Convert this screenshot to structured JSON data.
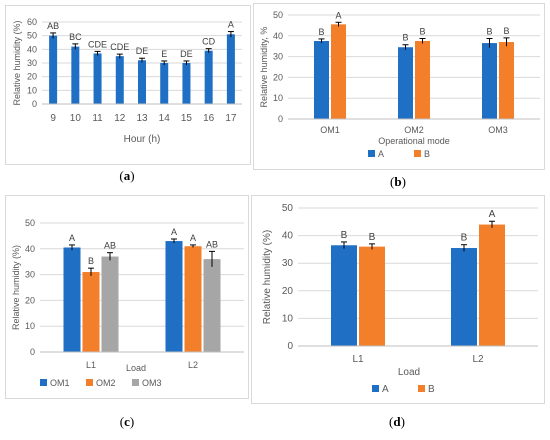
{
  "captions": [
    {
      "prefix": "(",
      "letter": "a",
      "suffix": ")"
    },
    {
      "prefix": "(",
      "letter": "b",
      "suffix": ")"
    },
    {
      "prefix": "(",
      "letter": "c",
      "suffix": ")"
    },
    {
      "prefix": "(",
      "letter": "d",
      "suffix": ")"
    }
  ],
  "colors": {
    "A": "#1f6fc4",
    "B": "#f47f2a",
    "OM1": "#1f6fc4",
    "OM2": "#f47f2a",
    "OM3": "#a6a6a6",
    "grid": "#d9d9d9",
    "axis_text": "#595959"
  },
  "chart_data": [
    {
      "type": "bar",
      "panel": "a",
      "categories": [
        "9",
        "10",
        "11",
        "12",
        "13",
        "14",
        "15",
        "16",
        "17"
      ],
      "series": [
        {
          "values": [
            50,
            42,
            37,
            35,
            32,
            30,
            30,
            39,
            51
          ],
          "errors": [
            2,
            2,
            1.5,
            1.5,
            1.5,
            1.5,
            1.5,
            1.5,
            2
          ],
          "labels": [
            "AB",
            "BC",
            "CDE",
            "CDE",
            "DE",
            "E",
            "DE",
            "CD",
            "A"
          ],
          "color": "#1f6fc4"
        }
      ],
      "xlabel": "Hour (h)",
      "ylabel": "Relative humidity (%)",
      "ylim": [
        0,
        60
      ],
      "yticks": [
        "0",
        "10",
        "20",
        "30",
        "40",
        "50",
        "60"
      ],
      "grid": true
    },
    {
      "type": "bar",
      "panel": "b",
      "categories": [
        "OM1",
        "OM2",
        "OM3"
      ],
      "series": [
        {
          "name": "A",
          "color": "#1f6fc4",
          "values": [
            37.5,
            34.5,
            36.5
          ],
          "errors": [
            1,
            1.2,
            2.2
          ],
          "labels": [
            "B",
            "B",
            "B"
          ]
        },
        {
          "name": "B",
          "color": "#f47f2a",
          "values": [
            45.5,
            37.5,
            37
          ],
          "errors": [
            1,
            1.2,
            2
          ],
          "labels": [
            "A",
            "B",
            "B"
          ]
        }
      ],
      "xlabel": "Operational mode",
      "ylabel": "Relative humidity, %",
      "ylim": [
        0,
        50
      ],
      "yticks": [
        "0",
        "10",
        "20",
        "30",
        "40",
        "50"
      ],
      "grid": true,
      "legend": "bottom"
    },
    {
      "type": "bar",
      "panel": "c",
      "categories": [
        "L1",
        "L2"
      ],
      "series": [
        {
          "name": "OM1",
          "color": "#1f6fc4",
          "values": [
            40.5,
            43
          ],
          "errors": [
            1,
            0.8
          ],
          "labels": [
            "A",
            "A"
          ]
        },
        {
          "name": "OM2",
          "color": "#f47f2a",
          "values": [
            31,
            41
          ],
          "errors": [
            1.5,
            0.5
          ],
          "labels": [
            "B",
            "A"
          ]
        },
        {
          "name": "OM3",
          "color": "#a6a6a6",
          "values": [
            37,
            36
          ],
          "errors": [
            1.5,
            3
          ],
          "labels": [
            "AB",
            "AB"
          ]
        }
      ],
      "xlabel": "Load",
      "ylabel": "Relative humidity (%)",
      "ylim": [
        0,
        50
      ],
      "yticks": [
        "0",
        "10",
        "20",
        "30",
        "40",
        "50"
      ],
      "grid": true,
      "legend": "bottom"
    },
    {
      "type": "bar",
      "panel": "d",
      "categories": [
        "L1",
        "L2"
      ],
      "series": [
        {
          "name": "A",
          "color": "#1f6fc4",
          "values": [
            36.5,
            35.5
          ],
          "errors": [
            1.2,
            1.2
          ],
          "labels": [
            "B",
            "B"
          ]
        },
        {
          "name": "B",
          "color": "#f47f2a",
          "values": [
            36,
            44
          ],
          "errors": [
            1,
            1.2
          ],
          "labels": [
            "B",
            "A"
          ]
        }
      ],
      "xlabel": "Load",
      "ylabel": "Relative humidity (%)",
      "ylim": [
        0,
        50
      ],
      "yticks": [
        "0",
        "10",
        "20",
        "30",
        "40",
        "50"
      ],
      "grid": true,
      "legend": "bottom"
    }
  ]
}
